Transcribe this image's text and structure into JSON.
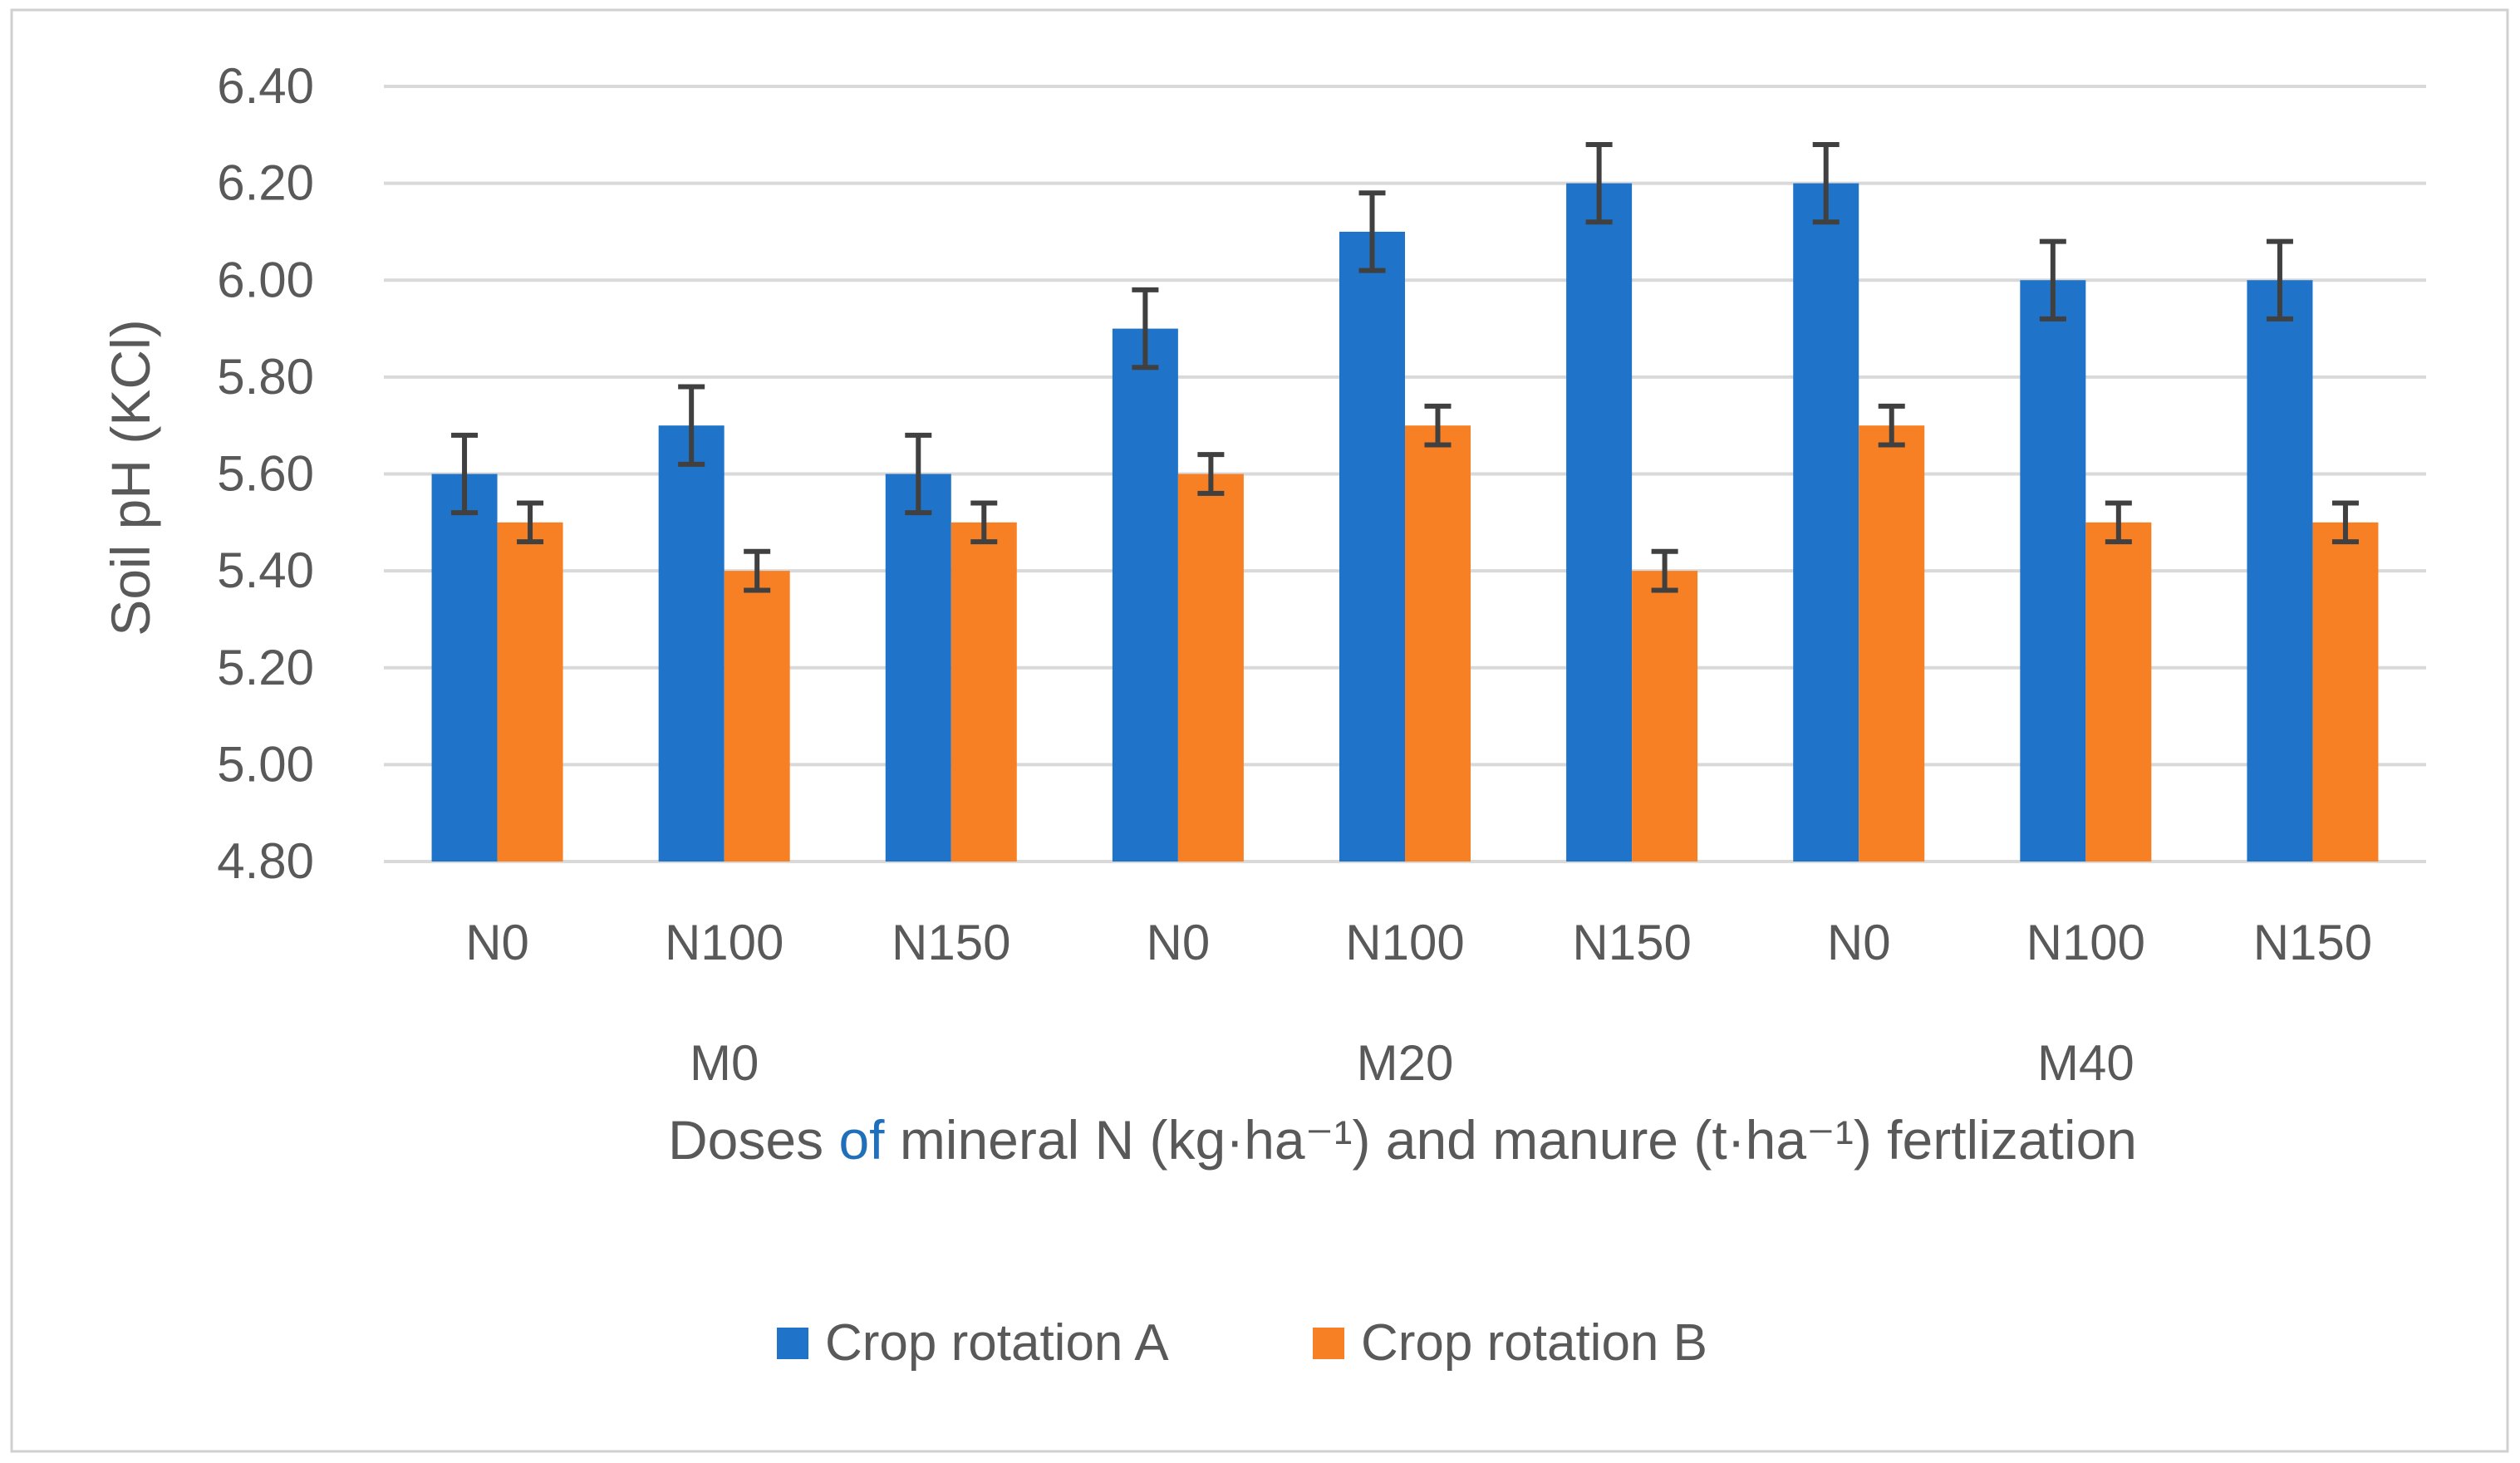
{
  "chart_data": {
    "type": "bar",
    "title": "",
    "ylabel": "Soil pH (KCl)",
    "xlabel": {
      "part1": "Doses ",
      "part2": "of",
      "part3": " mineral N (kg·ha⁻¹) and manure (t·ha⁻¹) fertlization"
    },
    "ylim": [
      4.8,
      6.4
    ],
    "yticks": [
      "6.40",
      "6.20",
      "6.00",
      "5.80",
      "5.60",
      "5.40",
      "5.20",
      "5.00",
      "4.80"
    ],
    "ytick_values": [
      6.4,
      6.2,
      6.0,
      5.8,
      5.6,
      5.4,
      5.2,
      5.0,
      4.8
    ],
    "grid": true,
    "legend_position": "bottom",
    "categories": [
      "N0",
      "N100",
      "N150",
      "N0",
      "N100",
      "N150",
      "N0",
      "N100",
      "N150"
    ],
    "groups": [
      {
        "label": "M0",
        "span": [
          0,
          2
        ]
      },
      {
        "label": "M20",
        "span": [
          3,
          5
        ]
      },
      {
        "label": "M40",
        "span": [
          6,
          8
        ]
      }
    ],
    "series": [
      {
        "name": "Crop rotation A",
        "color": "#1f73c8",
        "values": [
          5.6,
          5.7,
          5.6,
          5.9,
          6.1,
          6.2,
          6.2,
          6.0,
          6.0
        ],
        "errors": [
          0.08,
          0.08,
          0.08,
          0.08,
          0.08,
          0.08,
          0.08,
          0.08,
          0.08
        ]
      },
      {
        "name": "Crop rotation B",
        "color": "#f88024",
        "values": [
          5.5,
          5.4,
          5.5,
          5.6,
          5.7,
          5.4,
          5.7,
          5.5,
          5.5
        ],
        "errors": [
          0.04,
          0.04,
          0.04,
          0.04,
          0.04,
          0.04,
          0.04,
          0.04,
          0.04
        ]
      }
    ]
  },
  "colors": {
    "axis_text": "#595959",
    "grid": "#d9d9d9",
    "error_bar": "#404040",
    "xlabel_accent": "#1f6fba"
  }
}
